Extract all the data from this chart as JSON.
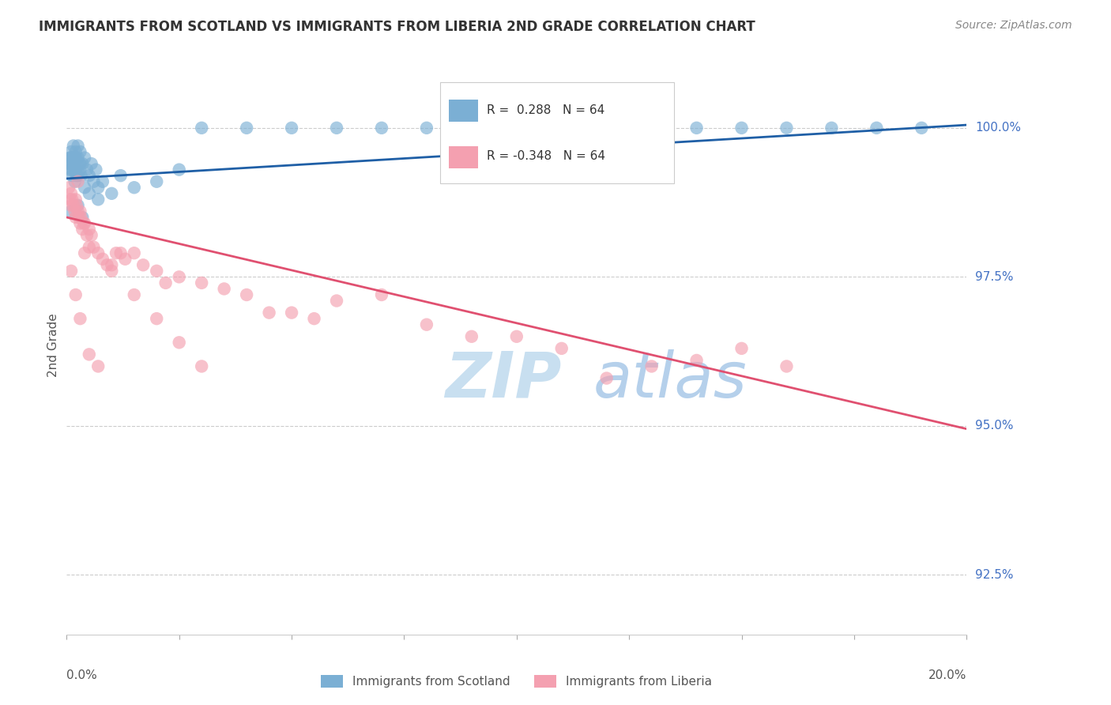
{
  "title": "IMMIGRANTS FROM SCOTLAND VS IMMIGRANTS FROM LIBERIA 2ND GRADE CORRELATION CHART",
  "source": "Source: ZipAtlas.com",
  "ylabel": "2nd Grade",
  "ytick_values": [
    100.0,
    97.5,
    95.0,
    92.5
  ],
  "xlim": [
    0.0,
    20.0
  ],
  "ylim": [
    91.5,
    101.2
  ],
  "legend_scotland_R": "0.288",
  "legend_scotland_N": "64",
  "legend_liberia_R": "-0.348",
  "legend_liberia_N": "64",
  "scotland_color": "#7bafd4",
  "liberia_color": "#f4a0b0",
  "line_scotland_color": "#1f5fa6",
  "line_liberia_color": "#e05070",
  "watermark_color": "#c8dff0",
  "scot_line_x0": 0.0,
  "scot_line_y0": 99.15,
  "scot_line_x1": 20.0,
  "scot_line_y1": 100.05,
  "lib_line_x0": 0.0,
  "lib_line_y0": 98.5,
  "lib_line_x1": 20.0,
  "lib_line_y1": 94.95
}
